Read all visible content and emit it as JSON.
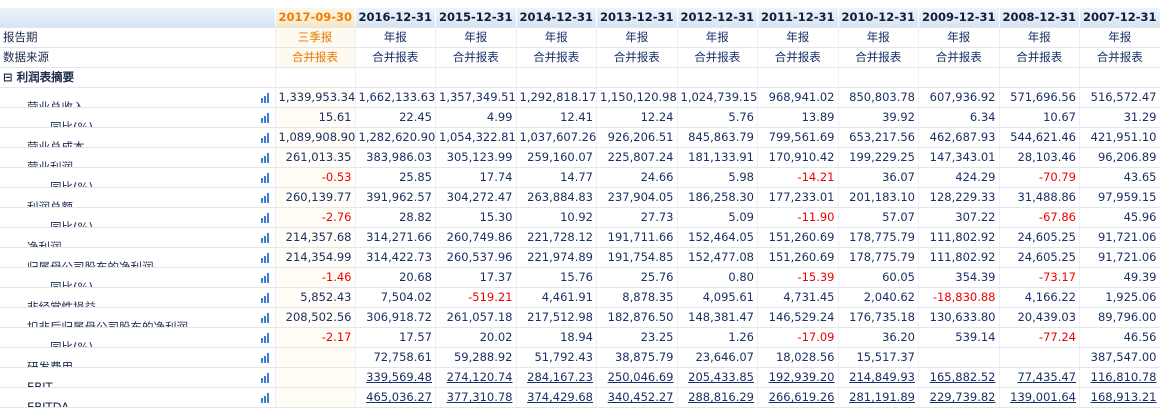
{
  "table": {
    "dates": [
      "2017-09-30",
      "2016-12-31",
      "2015-12-31",
      "2014-12-31",
      "2013-12-31",
      "2012-12-31",
      "2011-12-31",
      "2010-12-31",
      "2009-12-31",
      "2008-12-31",
      "2007-12-31"
    ],
    "meta": [
      {
        "label": "报告期",
        "values": [
          "三季报",
          "年报",
          "年报",
          "年报",
          "年报",
          "年报",
          "年报",
          "年报",
          "年报",
          "年报",
          "年报"
        ]
      },
      {
        "label": "数据来源",
        "values": [
          "合并报表",
          "合并报表",
          "合并报表",
          "合并报表",
          "合并报表",
          "合并报表",
          "合并报表",
          "合并报表",
          "合并报表",
          "合并报表",
          "合并报表"
        ]
      }
    ],
    "section": "⊟ 利润表摘要",
    "rows": [
      {
        "label": "营业总收入",
        "level": 1,
        "values": [
          "1,339,953.34",
          "1,662,133.63",
          "1,357,349.51",
          "1,292,818.17",
          "1,150,120.98",
          "1,024,739.15",
          "968,941.02",
          "850,803.78",
          "607,936.92",
          "571,696.56",
          "516,572.47"
        ]
      },
      {
        "label": "同比(%)",
        "level": 2,
        "values": [
          "15.61",
          "22.45",
          "4.99",
          "12.41",
          "12.24",
          "5.76",
          "13.89",
          "39.92",
          "6.34",
          "10.67",
          "31.29"
        ]
      },
      {
        "label": "营业总成本",
        "level": 1,
        "values": [
          "1,089,908.90",
          "1,282,620.90",
          "1,054,322.81",
          "1,037,607.26",
          "926,206.51",
          "845,863.79",
          "799,561.69",
          "653,217.56",
          "462,687.93",
          "544,621.46",
          "421,951.10"
        ]
      },
      {
        "label": "营业利润",
        "level": 1,
        "values": [
          "261,013.35",
          "383,986.03",
          "305,123.99",
          "259,160.07",
          "225,807.24",
          "181,133.91",
          "170,910.42",
          "199,229.25",
          "147,343.01",
          "28,103.46",
          "96,206.89"
        ]
      },
      {
        "label": "同比(%)",
        "level": 2,
        "values": [
          "-0.53",
          "25.85",
          "17.74",
          "14.77",
          "24.66",
          "5.98",
          "-14.21",
          "36.07",
          "424.29",
          "-70.79",
          "43.65"
        ]
      },
      {
        "label": "利润总额",
        "level": 1,
        "values": [
          "260,139.77",
          "391,962.57",
          "304,272.47",
          "263,884.83",
          "237,904.05",
          "186,258.30",
          "177,233.01",
          "201,183.10",
          "128,229.33",
          "31,488.86",
          "97,959.15"
        ]
      },
      {
        "label": "同比(%)",
        "level": 2,
        "values": [
          "-2.76",
          "28.82",
          "15.30",
          "10.92",
          "27.73",
          "5.09",
          "-11.90",
          "57.07",
          "307.22",
          "-67.86",
          "45.96"
        ]
      },
      {
        "label": "净利润",
        "level": 1,
        "values": [
          "214,357.68",
          "314,271.66",
          "260,749.86",
          "221,728.12",
          "191,711.66",
          "152,464.05",
          "151,260.69",
          "178,775.79",
          "111,802.92",
          "24,605.25",
          "91,721.06"
        ]
      },
      {
        "label": "归属母公司股东的净利润",
        "level": 1,
        "values": [
          "214,354.99",
          "314,422.73",
          "260,537.96",
          "221,974.89",
          "191,754.85",
          "152,477.08",
          "151,260.69",
          "178,775.79",
          "111,802.92",
          "24,605.25",
          "91,721.06"
        ]
      },
      {
        "label": "同比(%)",
        "level": 2,
        "values": [
          "-1.46",
          "20.68",
          "17.37",
          "15.76",
          "25.76",
          "0.80",
          "-15.39",
          "60.05",
          "354.39",
          "-73.17",
          "49.39"
        ]
      },
      {
        "label": "非经常性损益",
        "level": 1,
        "values": [
          "5,852.43",
          "7,504.02",
          "-519.21",
          "4,461.91",
          "8,878.35",
          "4,095.61",
          "4,731.45",
          "2,040.62",
          "-18,830.88",
          "4,166.22",
          "1,925.06"
        ]
      },
      {
        "label": "扣非后归属母公司股东的净利润",
        "level": 1,
        "values": [
          "208,502.56",
          "306,918.72",
          "261,057.18",
          "217,512.98",
          "182,876.50",
          "148,381.47",
          "146,529.24",
          "176,735.18",
          "130,633.80",
          "20,439.03",
          "89,796.00"
        ]
      },
      {
        "label": "同比(%)",
        "level": 2,
        "values": [
          "-2.17",
          "17.57",
          "20.02",
          "18.94",
          "23.25",
          "1.26",
          "-17.09",
          "36.20",
          "539.14",
          "-77.24",
          "46.56"
        ]
      },
      {
        "label": "研发费用",
        "level": 1,
        "values": [
          null,
          "72,758.61",
          "59,288.92",
          "51,792.43",
          "38,875.79",
          "23,646.07",
          "18,028.56",
          "15,517.37",
          null,
          null,
          "387,547.00"
        ]
      },
      {
        "label": "EBIT",
        "level": 1,
        "link": true,
        "values": [
          null,
          "339,569.48",
          "274,120.74",
          "284,167.23",
          "250,046.69",
          "205,433.85",
          "192,939.20",
          "214,849.93",
          "165,882.52",
          "77,435.47",
          "116,810.78"
        ]
      },
      {
        "label": "EBITDA",
        "level": 1,
        "link": true,
        "values": [
          null,
          "465,036.27",
          "377,310.78",
          "374,429.68",
          "340,452.27",
          "288,816.29",
          "266,619.26",
          "281,191.89",
          "229,739.82",
          "139,001.64",
          "168,913.21"
        ]
      }
    ]
  }
}
